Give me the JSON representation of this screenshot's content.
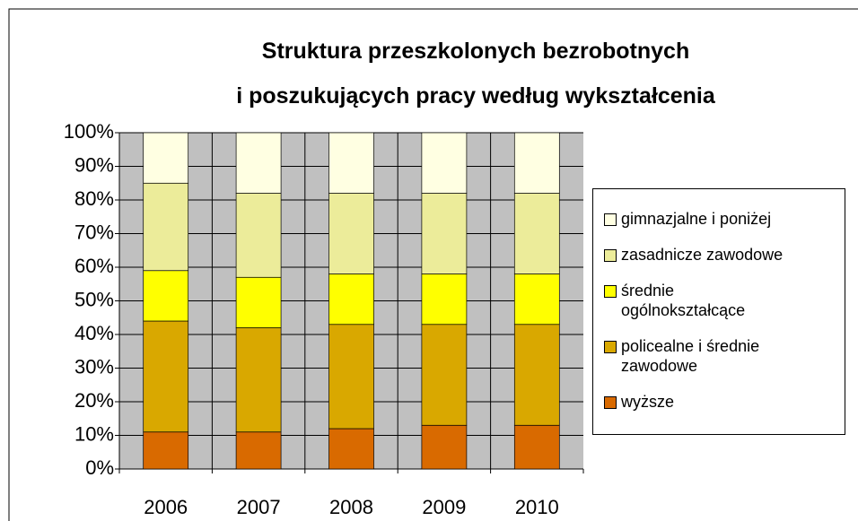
{
  "chart_data": {
    "type": "stacked_bar",
    "title": "Struktura przeszkolonych bezrobotnych\ni poszukujących pracy według wykształcenia",
    "categories": [
      "2006",
      "2007",
      "2008",
      "2009",
      "2010"
    ],
    "series": [
      {
        "name": "wyższe",
        "color": "#d96a00",
        "values": [
          11,
          11,
          12,
          13,
          13
        ]
      },
      {
        "name": "policealne i średnie zawodowe",
        "color": "#d9a800",
        "values": [
          33,
          31,
          31,
          30,
          30
        ]
      },
      {
        "name": "średnie ogólnokształcące",
        "color": "#ffff00",
        "values": [
          15,
          15,
          15,
          15,
          15
        ]
      },
      {
        "name": "zasadnicze zawodowe",
        "color": "#ecec9a",
        "values": [
          26,
          25,
          24,
          24,
          24
        ]
      },
      {
        "name": "gimnazjalne i poniżej",
        "color": "#ffffe2",
        "values": [
          15,
          18,
          18,
          18,
          18
        ]
      }
    ],
    "ylim": [
      0,
      100
    ],
    "yticks": [
      {
        "value": 0,
        "label": "0%"
      },
      {
        "value": 10,
        "label": "10%"
      },
      {
        "value": 20,
        "label": "20%"
      },
      {
        "value": 30,
        "label": "30%"
      },
      {
        "value": 40,
        "label": "40%"
      },
      {
        "value": 50,
        "label": "50%"
      },
      {
        "value": 60,
        "label": "60%"
      },
      {
        "value": 70,
        "label": "70%"
      },
      {
        "value": 80,
        "label": "80%"
      },
      {
        "value": 90,
        "label": "90%"
      },
      {
        "value": 100,
        "label": "100%"
      }
    ],
    "grid": true,
    "legend": "right"
  }
}
